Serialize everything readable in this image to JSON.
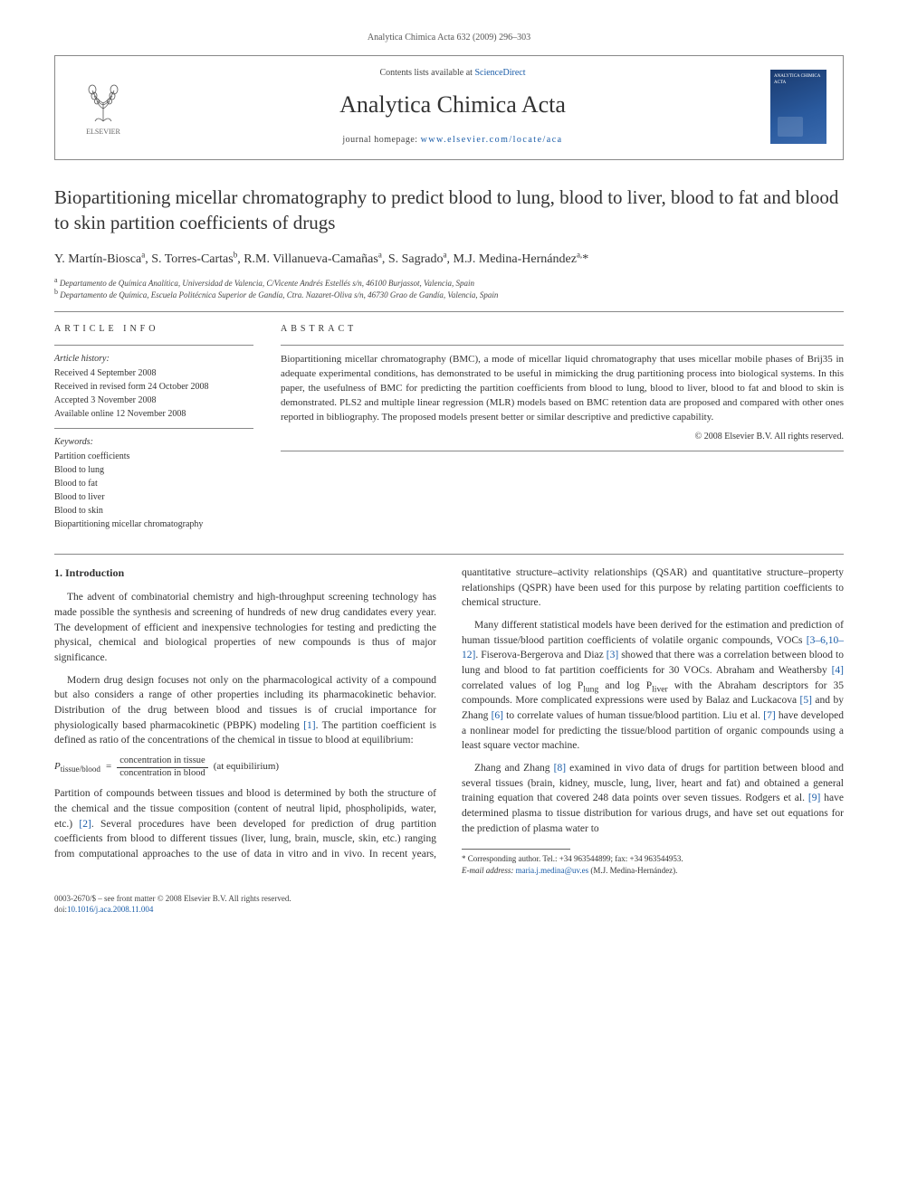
{
  "header": {
    "citation": "Analytica Chimica Acta 632 (2009) 296–303"
  },
  "journal_box": {
    "publisher": "ELSEVIER",
    "contents_prefix": "Contents lists available at ",
    "contents_link": "ScienceDirect",
    "journal_name": "Analytica Chimica Acta",
    "homepage_prefix": "journal homepage: ",
    "homepage_url": "www.elsevier.com/locate/aca",
    "cover_label": "ANALYTICA CHIMICA ACTA"
  },
  "title": "Biopartitioning micellar chromatography to predict blood to lung, blood to liver, blood to fat and blood to skin partition coefficients of drugs",
  "authors_html": "Y. Martín-Biosca<sup>a</sup>, S. Torres-Cartas<sup>b</sup>, R.M. Villanueva-Camañas<sup>a</sup>, S. Sagrado<sup>a</sup>, M.J. Medina-Hernández<sup>a,</sup>*",
  "affiliations": [
    {
      "sup": "a",
      "text": "Departamento de Química Analítica, Universidad de Valencia, C/Vicente Andrés Estellés s/n, 46100 Burjassot, Valencia, Spain"
    },
    {
      "sup": "b",
      "text": "Departamento de Química, Escuela Politécnica Superior de Gandía, Ctra. Nazaret-Oliva s/n, 46730 Grao de Gandía, Valencia, Spain"
    }
  ],
  "article_info": {
    "heading": "ARTICLE INFO",
    "history_label": "Article history:",
    "history": [
      "Received 4 September 2008",
      "Received in revised form 24 October 2008",
      "Accepted 3 November 2008",
      "Available online 12 November 2008"
    ],
    "keywords_label": "Keywords:",
    "keywords": [
      "Partition coefficients",
      "Blood to lung",
      "Blood to fat",
      "Blood to liver",
      "Blood to skin",
      "Biopartitioning micellar chromatography"
    ]
  },
  "abstract": {
    "heading": "ABSTRACT",
    "text": "Biopartitioning micellar chromatography (BMC), a mode of micellar liquid chromatography that uses micellar mobile phases of Brij35 in adequate experimental conditions, has demonstrated to be useful in mimicking the drug partitioning process into biological systems. In this paper, the usefulness of BMC for predicting the partition coefficients from blood to lung, blood to liver, blood to fat and blood to skin is demonstrated. PLS2 and multiple linear regression (MLR) models based on BMC retention data are proposed and compared with other ones reported in bibliography. The proposed models present better or similar descriptive and predictive capability.",
    "copyright": "© 2008 Elsevier B.V. All rights reserved."
  },
  "body": {
    "section_heading": "1.  Introduction",
    "p1": "The advent of combinatorial chemistry and high-throughput screening technology has made possible the synthesis and screening of hundreds of new drug candidates every year. The development of efficient and inexpensive technologies for testing and predicting the physical, chemical and biological properties of new compounds is thus of major significance.",
    "p2_a": "Modern drug design focuses not only on the pharmacological activity of a compound but also considers a range of other properties including its pharmacokinetic behavior. Distribution of the drug between blood and tissues is of crucial importance for physiologically based pharmacokinetic (PBPK) modeling ",
    "p2_ref1": "[1]",
    "p2_b": ". The partition coefficient is defined as ratio of the concentrations of the chemical in tissue to blood at equilibrium:",
    "eq": {
      "lhs": "P",
      "sub": "tissue/blood",
      "eq": " = ",
      "num": "concentration in tissue",
      "den": "concentration in blood",
      "tail": " (at equibilirium)"
    },
    "p3_a": "Partition of compounds between tissues and blood is determined by both the structure of the chemical and the tissue composition (content of neutral lipid, phospholipids, water, etc.) ",
    "p3_ref2": "[2]",
    "p3_b": ". Several procedures have been developed for prediction of drug partition coefficients from blood to different tissues (liver, lung, brain, muscle, skin, etc.) ranging from computational approaches to the use of data in vitro and in vivo. In recent years, quantitative structure–activity relationships (QSAR) and quantitative structure–property relationships (QSPR) have been used for this purpose by relating partition coefficients to chemical structure.",
    "p4_a": "Many different statistical models have been derived for the estimation and prediction of human tissue/blood partition coefficients of volatile organic compounds, VOCs ",
    "p4_ref": "[3–6,10–12]",
    "p4_b": ". Fiserova-Bergerova and Diaz ",
    "p4_ref3": "[3]",
    "p4_c": " showed that there was a correlation between blood to lung and blood to fat partition coefficients for 30 VOCs. Abraham and Weathersby ",
    "p4_ref4": "[4]",
    "p4_d": " correlated values of log P",
    "p4_sub1": "lung",
    "p4_e": " and log P",
    "p4_sub2": "liver",
    "p4_f": " with the Abraham descriptors for 35 compounds. More complicated expressions were used by Balaz and Luckacova ",
    "p4_ref5": "[5]",
    "p4_g": " and by Zhang ",
    "p4_ref6": "[6]",
    "p4_h": " to correlate values of human tissue/blood partition. Liu et al. ",
    "p4_ref7": "[7]",
    "p4_i": " have developed a nonlinear model for predicting the tissue/blood partition of organic compounds using a least square vector machine.",
    "p5_a": "Zhang and Zhang ",
    "p5_ref8": "[8]",
    "p5_b": " examined in vivo data of drugs for partition between blood and several tissues (brain, kidney, muscle, lung, liver, heart and fat) and obtained a general training equation that covered 248 data points over seven tissues. Rodgers et al. ",
    "p5_ref9": "[9]",
    "p5_c": " have determined plasma to tissue distribution for various drugs, and have set out equations for the prediction of plasma water to"
  },
  "footnote": {
    "line1": "* Corresponding author. Tel.: +34 963544899; fax: +34 963544953.",
    "line2_label": "E-mail address: ",
    "line2_email": "maria.j.medina@uv.es",
    "line2_tail": " (M.J. Medina-Hernández)."
  },
  "footer": {
    "issn": "0003-2670/$ – see front matter © 2008 Elsevier B.V. All rights reserved.",
    "doi_label": "doi:",
    "doi": "10.1016/j.aca.2008.11.004"
  },
  "colors": {
    "link": "#1a5ca8",
    "rule": "#888888",
    "cover_bg": "#1a3a6e"
  }
}
